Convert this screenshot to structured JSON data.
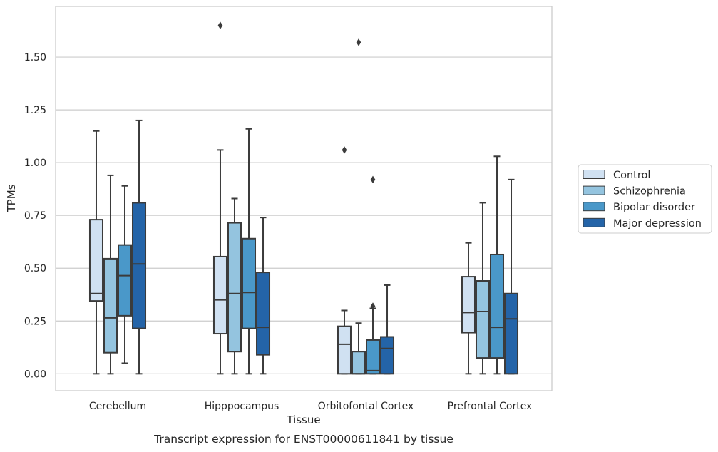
{
  "chart_data": {
    "type": "box",
    "xlabel": "Tissue",
    "ylabel": "TPMs",
    "caption": "Transcript expression for ENST00000611841 by tissue",
    "categories": [
      "Cerebellum",
      "Hipppocampus",
      "Orbitofontal Cortex",
      "Prefrontal Cortex"
    ],
    "ylim": [
      -0.08,
      1.74
    ],
    "yticks": [
      0.0,
      0.25,
      0.5,
      0.75,
      1.0,
      1.25,
      1.5
    ],
    "ytick_labels": [
      "0.00",
      "0.25",
      "0.50",
      "0.75",
      "1.00",
      "1.25",
      "1.50"
    ],
    "grid": true,
    "legend_position": "right",
    "series": [
      {
        "name": "Control",
        "color": "#d0e1f2",
        "boxes": [
          {
            "whislo": 0.0,
            "q1": 0.345,
            "med": 0.38,
            "q3": 0.73,
            "whishi": 1.15,
            "fliers": []
          },
          {
            "whislo": 0.0,
            "q1": 0.19,
            "med": 0.35,
            "q3": 0.555,
            "whishi": 1.06,
            "fliers": [
              1.65
            ]
          },
          {
            "whislo": 0.0,
            "q1": 0.0,
            "med": 0.14,
            "q3": 0.225,
            "whishi": 0.3,
            "fliers": [
              1.06
            ]
          },
          {
            "whislo": 0.0,
            "q1": 0.195,
            "med": 0.29,
            "q3": 0.46,
            "whishi": 0.62,
            "fliers": []
          }
        ]
      },
      {
        "name": "Schizophrenia",
        "color": "#94c4df",
        "boxes": [
          {
            "whislo": 0.0,
            "q1": 0.1,
            "med": 0.265,
            "q3": 0.545,
            "whishi": 0.94,
            "fliers": []
          },
          {
            "whislo": 0.0,
            "q1": 0.105,
            "med": 0.38,
            "q3": 0.715,
            "whishi": 0.83,
            "fliers": []
          },
          {
            "whislo": 0.0,
            "q1": 0.0,
            "med": 0.0,
            "q3": 0.105,
            "whishi": 0.24,
            "fliers": [
              1.57
            ]
          },
          {
            "whislo": 0.0,
            "q1": 0.075,
            "med": 0.295,
            "q3": 0.44,
            "whishi": 0.81,
            "fliers": []
          }
        ]
      },
      {
        "name": "Bipolar disorder",
        "color": "#4a98c9",
        "boxes": [
          {
            "whislo": 0.05,
            "q1": 0.275,
            "med": 0.465,
            "q3": 0.61,
            "whishi": 0.89,
            "fliers": []
          },
          {
            "whislo": 0.0,
            "q1": 0.215,
            "med": 0.385,
            "q3": 0.64,
            "whishi": 1.16,
            "fliers": []
          },
          {
            "whislo": 0.0,
            "q1": 0.0,
            "med": 0.015,
            "q3": 0.16,
            "whishi": 0.31,
            "fliers": [
              0.32,
              0.92
            ]
          },
          {
            "whislo": 0.0,
            "q1": 0.075,
            "med": 0.22,
            "q3": 0.565,
            "whishi": 1.03,
            "fliers": []
          }
        ]
      },
      {
        "name": "Major depression",
        "color": "#2464a8",
        "boxes": [
          {
            "whislo": 0.0,
            "q1": 0.215,
            "med": 0.52,
            "q3": 0.81,
            "whishi": 1.2,
            "fliers": []
          },
          {
            "whislo": 0.0,
            "q1": 0.09,
            "med": 0.22,
            "q3": 0.48,
            "whishi": 0.74,
            "fliers": []
          },
          {
            "whislo": 0.0,
            "q1": 0.0,
            "med": 0.12,
            "q3": 0.175,
            "whishi": 0.42,
            "fliers": []
          },
          {
            "whislo": 0.0,
            "q1": 0.0,
            "med": 0.26,
            "q3": 0.38,
            "whishi": 0.92,
            "fliers": []
          }
        ]
      }
    ]
  }
}
